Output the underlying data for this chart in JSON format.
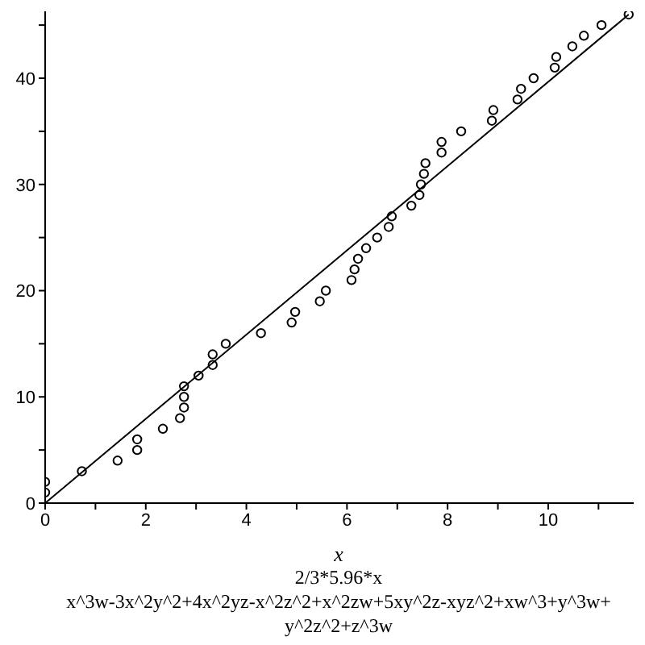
{
  "chart_data": {
    "type": "scatter",
    "xlabel": "x",
    "annotations": [
      "2/3*5.96*x",
      "x^3w-3x^2y^2+4x^2yz-x^2z^2+x^2zw+5xy^2z-xyz^2+xw^3+y^3w+y^2z^2+z^3w"
    ],
    "xlim": [
      0,
      11.7
    ],
    "ylim": [
      0,
      46.3
    ],
    "xticks": [
      0,
      {
        "value": 1,
        "label": null
      },
      2,
      {
        "value": 3,
        "label": null
      },
      4,
      {
        "value": 5,
        "label": null
      },
      6,
      {
        "value": 7,
        "label": null
      },
      8,
      {
        "value": 9,
        "label": null
      },
      10,
      {
        "value": 11,
        "label": null
      }
    ],
    "yticks": [
      0,
      {
        "value": 5,
        "label": null
      },
      10,
      {
        "value": 15,
        "label": null
      },
      20,
      {
        "value": 25,
        "label": null
      },
      30,
      {
        "value": 35,
        "label": null
      },
      40,
      {
        "value": 45,
        "label": null
      }
    ],
    "marker": "circle",
    "series": [
      {
        "type": "line",
        "color": "#000000",
        "marker": "none",
        "x": [
          0,
          11.6
        ],
        "values": [
          0,
          46
        ]
      },
      {
        "color": "#000000",
        "x": [
          0,
          0,
          0.73,
          1.44,
          1.83,
          1.83,
          2.34,
          2.68,
          2.76,
          2.76,
          2.76,
          3.05,
          3.33,
          3.33,
          3.59,
          4.29,
          4.9,
          4.97,
          5.46,
          5.58,
          6.09,
          6.15,
          6.22,
          6.38,
          6.6,
          6.83,
          6.89,
          7.28,
          7.44,
          7.47,
          7.53,
          7.56,
          7.88,
          7.88,
          8.27,
          8.88,
          8.91,
          9.39,
          9.46,
          9.71,
          10.13,
          10.16,
          10.48,
          10.71,
          11.06,
          11.6
        ],
        "values": [
          1,
          2,
          3,
          4,
          5,
          6,
          7,
          8,
          9,
          10,
          11,
          12,
          13,
          14,
          15,
          16,
          17,
          18,
          19,
          20,
          21,
          22,
          23,
          24,
          25,
          26,
          27,
          28,
          29,
          30,
          31,
          32,
          33,
          34,
          35,
          36,
          37,
          38,
          39,
          40,
          41,
          42,
          43,
          44,
          45,
          46
        ]
      }
    ]
  }
}
